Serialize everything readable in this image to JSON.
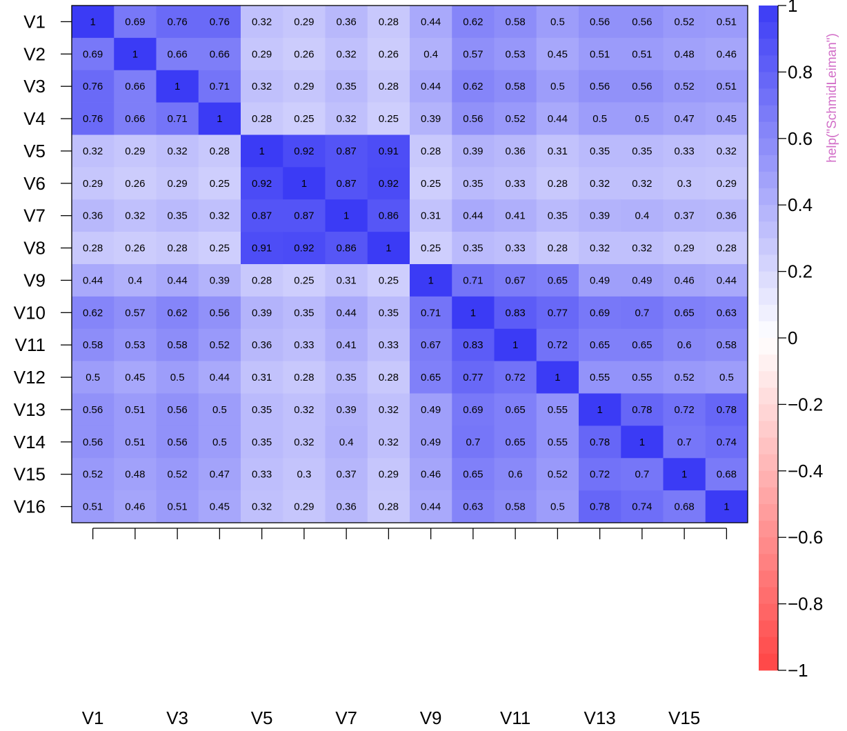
{
  "chart_data": {
    "type": "heatmap",
    "title": "",
    "xlabel": "",
    "ylabel": "",
    "rows": [
      "V1",
      "V2",
      "V3",
      "V4",
      "V5",
      "V6",
      "V7",
      "V8",
      "V9",
      "V10",
      "V11",
      "V12",
      "V13",
      "V14",
      "V15",
      "V16"
    ],
    "columns": [
      "V1",
      "V2",
      "V3",
      "V4",
      "V5",
      "V6",
      "V7",
      "V8",
      "V9",
      "V10",
      "V11",
      "V12",
      "V13",
      "V14",
      "V15",
      "V16"
    ],
    "x_tick_labels": [
      "V1",
      "V3",
      "V5",
      "V7",
      "V9",
      "V11",
      "V13",
      "V15"
    ],
    "y_tick_labels": [
      "V1",
      "V2",
      "V3",
      "V4",
      "V5",
      "V6",
      "V7",
      "V8",
      "V9",
      "V10",
      "V11",
      "V12",
      "V13",
      "V14",
      "V15",
      "V16"
    ],
    "values": [
      [
        1,
        0.69,
        0.76,
        0.76,
        0.32,
        0.29,
        0.36,
        0.28,
        0.44,
        0.62,
        0.58,
        0.5,
        0.56,
        0.56,
        0.52,
        0.51
      ],
      [
        0.69,
        1,
        0.66,
        0.66,
        0.29,
        0.26,
        0.32,
        0.26,
        0.4,
        0.57,
        0.53,
        0.45,
        0.51,
        0.51,
        0.48,
        0.46
      ],
      [
        0.76,
        0.66,
        1,
        0.71,
        0.32,
        0.29,
        0.35,
        0.28,
        0.44,
        0.62,
        0.58,
        0.5,
        0.56,
        0.56,
        0.52,
        0.51
      ],
      [
        0.76,
        0.66,
        0.71,
        1,
        0.28,
        0.25,
        0.32,
        0.25,
        0.39,
        0.56,
        0.52,
        0.44,
        0.5,
        0.5,
        0.47,
        0.45
      ],
      [
        0.32,
        0.29,
        0.32,
        0.28,
        1,
        0.92,
        0.87,
        0.91,
        0.28,
        0.39,
        0.36,
        0.31,
        0.35,
        0.35,
        0.33,
        0.32
      ],
      [
        0.29,
        0.26,
        0.29,
        0.25,
        0.92,
        1,
        0.87,
        0.92,
        0.25,
        0.35,
        0.33,
        0.28,
        0.32,
        0.32,
        0.3,
        0.29
      ],
      [
        0.36,
        0.32,
        0.35,
        0.32,
        0.87,
        0.87,
        1,
        0.86,
        0.31,
        0.44,
        0.41,
        0.35,
        0.39,
        0.4,
        0.37,
        0.36
      ],
      [
        0.28,
        0.26,
        0.28,
        0.25,
        0.91,
        0.92,
        0.86,
        1,
        0.25,
        0.35,
        0.33,
        0.28,
        0.32,
        0.32,
        0.29,
        0.28
      ],
      [
        0.44,
        0.4,
        0.44,
        0.39,
        0.28,
        0.25,
        0.31,
        0.25,
        1,
        0.71,
        0.67,
        0.65,
        0.49,
        0.49,
        0.46,
        0.44
      ],
      [
        0.62,
        0.57,
        0.62,
        0.56,
        0.39,
        0.35,
        0.44,
        0.35,
        0.71,
        1,
        0.83,
        0.77,
        0.69,
        0.7,
        0.65,
        0.63
      ],
      [
        0.58,
        0.53,
        0.58,
        0.52,
        0.36,
        0.33,
        0.41,
        0.33,
        0.67,
        0.83,
        1,
        0.72,
        0.65,
        0.65,
        0.6,
        0.58
      ],
      [
        0.5,
        0.45,
        0.5,
        0.44,
        0.31,
        0.28,
        0.35,
        0.28,
        0.65,
        0.77,
        0.72,
        1,
        0.55,
        0.55,
        0.52,
        0.5
      ],
      [
        0.56,
        0.51,
        0.56,
        0.5,
        0.35,
        0.32,
        0.39,
        0.32,
        0.49,
        0.69,
        0.65,
        0.55,
        1,
        0.78,
        0.72,
        0.78
      ],
      [
        0.56,
        0.51,
        0.56,
        0.5,
        0.35,
        0.32,
        0.4,
        0.32,
        0.49,
        0.7,
        0.65,
        0.55,
        0.78,
        1,
        0.7,
        0.74
      ],
      [
        0.52,
        0.48,
        0.52,
        0.47,
        0.33,
        0.3,
        0.37,
        0.29,
        0.46,
        0.65,
        0.6,
        0.52,
        0.72,
        0.7,
        1,
        0.68
      ],
      [
        0.51,
        0.46,
        0.51,
        0.45,
        0.32,
        0.29,
        0.36,
        0.28,
        0.44,
        0.63,
        0.58,
        0.5,
        0.78,
        0.74,
        0.68,
        1
      ]
    ],
    "color_scale": {
      "range": [
        -1,
        1
      ],
      "negative_color": "#ff4444",
      "zero_color": "#ffffff",
      "positive_color": "#3b3bf5",
      "ticks": [
        1,
        0.8,
        0.6,
        0.4,
        0.2,
        0,
        -0.2,
        -0.4,
        -0.6,
        -0.8,
        -1
      ],
      "tick_labels": [
        "1",
        "0.8",
        "0.6",
        "0.4",
        "0.2",
        "0",
        "−0.2",
        "−0.4",
        "−0.6",
        "−0.8",
        "−1"
      ],
      "title": "help(\"SchmidLeiman\")",
      "title_color": "#d26fc8"
    },
    "grid": false,
    "cell_labels": true
  }
}
